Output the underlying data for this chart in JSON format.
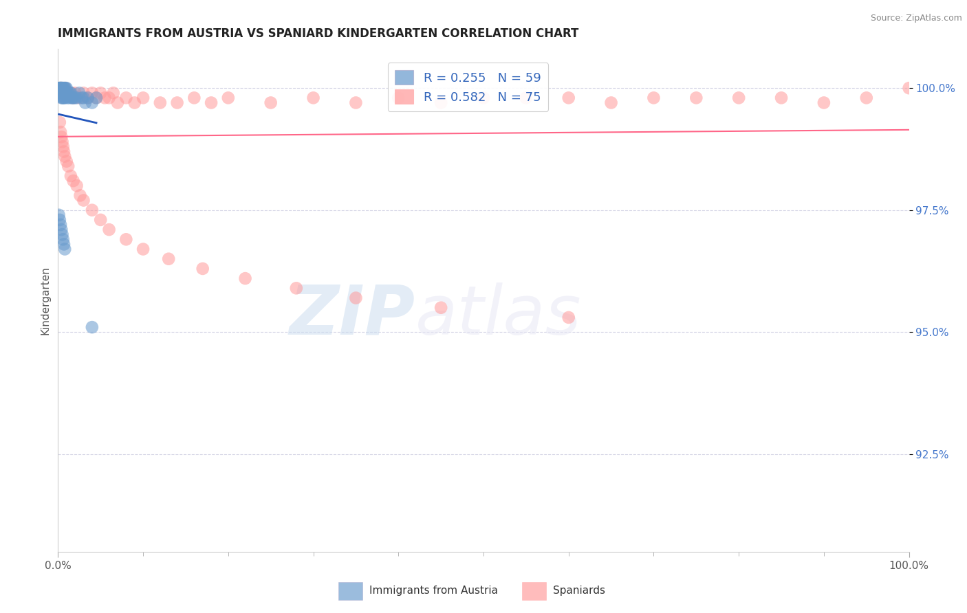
{
  "title": "IMMIGRANTS FROM AUSTRIA VS SPANIARD KINDERGARTEN CORRELATION CHART",
  "source": "Source: ZipAtlas.com",
  "ylabel": "Kindergarten",
  "y_tick_labels": [
    "92.5%",
    "95.0%",
    "97.5%",
    "100.0%"
  ],
  "y_tick_values": [
    0.925,
    0.95,
    0.975,
    1.0
  ],
  "x_lim": [
    0.0,
    1.0
  ],
  "y_lim": [
    0.905,
    1.008
  ],
  "blue_label": "Immigrants from Austria",
  "pink_label": "Spaniards",
  "blue_R": 0.255,
  "blue_N": 59,
  "pink_R": 0.582,
  "pink_N": 75,
  "blue_color": "#6699CC",
  "pink_color": "#FF9999",
  "blue_line_color": "#2255BB",
  "pink_line_color": "#FF6688",
  "watermark_zip": "ZIP",
  "watermark_atlas": "atlas",
  "background_color": "#FFFFFF",
  "blue_x": [
    0.001,
    0.001,
    0.002,
    0.002,
    0.002,
    0.003,
    0.003,
    0.003,
    0.003,
    0.003,
    0.004,
    0.004,
    0.004,
    0.004,
    0.005,
    0.005,
    0.005,
    0.005,
    0.006,
    0.006,
    0.006,
    0.006,
    0.007,
    0.007,
    0.007,
    0.008,
    0.008,
    0.008,
    0.009,
    0.009,
    0.01,
    0.01,
    0.011,
    0.011,
    0.012,
    0.013,
    0.014,
    0.015,
    0.016,
    0.017,
    0.018,
    0.02,
    0.022,
    0.025,
    0.028,
    0.03,
    0.032,
    0.035,
    0.04,
    0.045,
    0.001,
    0.002,
    0.003,
    0.004,
    0.005,
    0.006,
    0.007,
    0.008,
    0.04
  ],
  "blue_y": [
    1.0,
    0.999,
    1.0,
    1.0,
    0.999,
    1.0,
    1.0,
    0.999,
    0.999,
    1.0,
    1.0,
    1.0,
    0.999,
    0.998,
    1.0,
    1.0,
    0.999,
    0.998,
    1.0,
    0.999,
    0.999,
    0.998,
    1.0,
    0.999,
    0.998,
    1.0,
    0.999,
    0.998,
    1.0,
    0.999,
    1.0,
    0.999,
    0.999,
    0.998,
    0.999,
    0.998,
    0.999,
    0.999,
    0.998,
    0.998,
    0.998,
    0.998,
    0.998,
    0.999,
    0.998,
    0.998,
    0.997,
    0.998,
    0.997,
    0.998,
    0.974,
    0.973,
    0.972,
    0.971,
    0.97,
    0.969,
    0.968,
    0.967,
    0.951
  ],
  "pink_x": [
    0.001,
    0.002,
    0.003,
    0.004,
    0.005,
    0.006,
    0.007,
    0.008,
    0.009,
    0.01,
    0.012,
    0.014,
    0.016,
    0.018,
    0.02,
    0.025,
    0.03,
    0.035,
    0.04,
    0.045,
    0.05,
    0.055,
    0.06,
    0.065,
    0.07,
    0.08,
    0.09,
    0.1,
    0.12,
    0.14,
    0.16,
    0.18,
    0.2,
    0.25,
    0.3,
    0.35,
    0.4,
    0.45,
    0.5,
    0.55,
    0.6,
    0.65,
    0.7,
    0.75,
    0.8,
    0.85,
    0.9,
    0.95,
    1.0,
    0.002,
    0.003,
    0.004,
    0.005,
    0.006,
    0.007,
    0.008,
    0.01,
    0.012,
    0.015,
    0.018,
    0.022,
    0.026,
    0.03,
    0.04,
    0.05,
    0.06,
    0.08,
    0.1,
    0.13,
    0.17,
    0.22,
    0.28,
    0.35,
    0.45,
    0.6
  ],
  "pink_y": [
    0.999,
    0.999,
    1.0,
    1.0,
    0.999,
    0.999,
    0.999,
    1.0,
    0.999,
    0.999,
    0.999,
    0.999,
    0.999,
    0.998,
    0.999,
    0.998,
    0.999,
    0.998,
    0.999,
    0.998,
    0.999,
    0.998,
    0.998,
    0.999,
    0.997,
    0.998,
    0.997,
    0.998,
    0.997,
    0.997,
    0.998,
    0.997,
    0.998,
    0.997,
    0.998,
    0.997,
    0.998,
    0.997,
    0.998,
    0.998,
    0.998,
    0.997,
    0.998,
    0.998,
    0.998,
    0.998,
    0.997,
    0.998,
    1.0,
    0.993,
    0.991,
    0.99,
    0.989,
    0.988,
    0.987,
    0.986,
    0.985,
    0.984,
    0.982,
    0.981,
    0.98,
    0.978,
    0.977,
    0.975,
    0.973,
    0.971,
    0.969,
    0.967,
    0.965,
    0.963,
    0.961,
    0.959,
    0.957,
    0.955,
    0.953
  ]
}
